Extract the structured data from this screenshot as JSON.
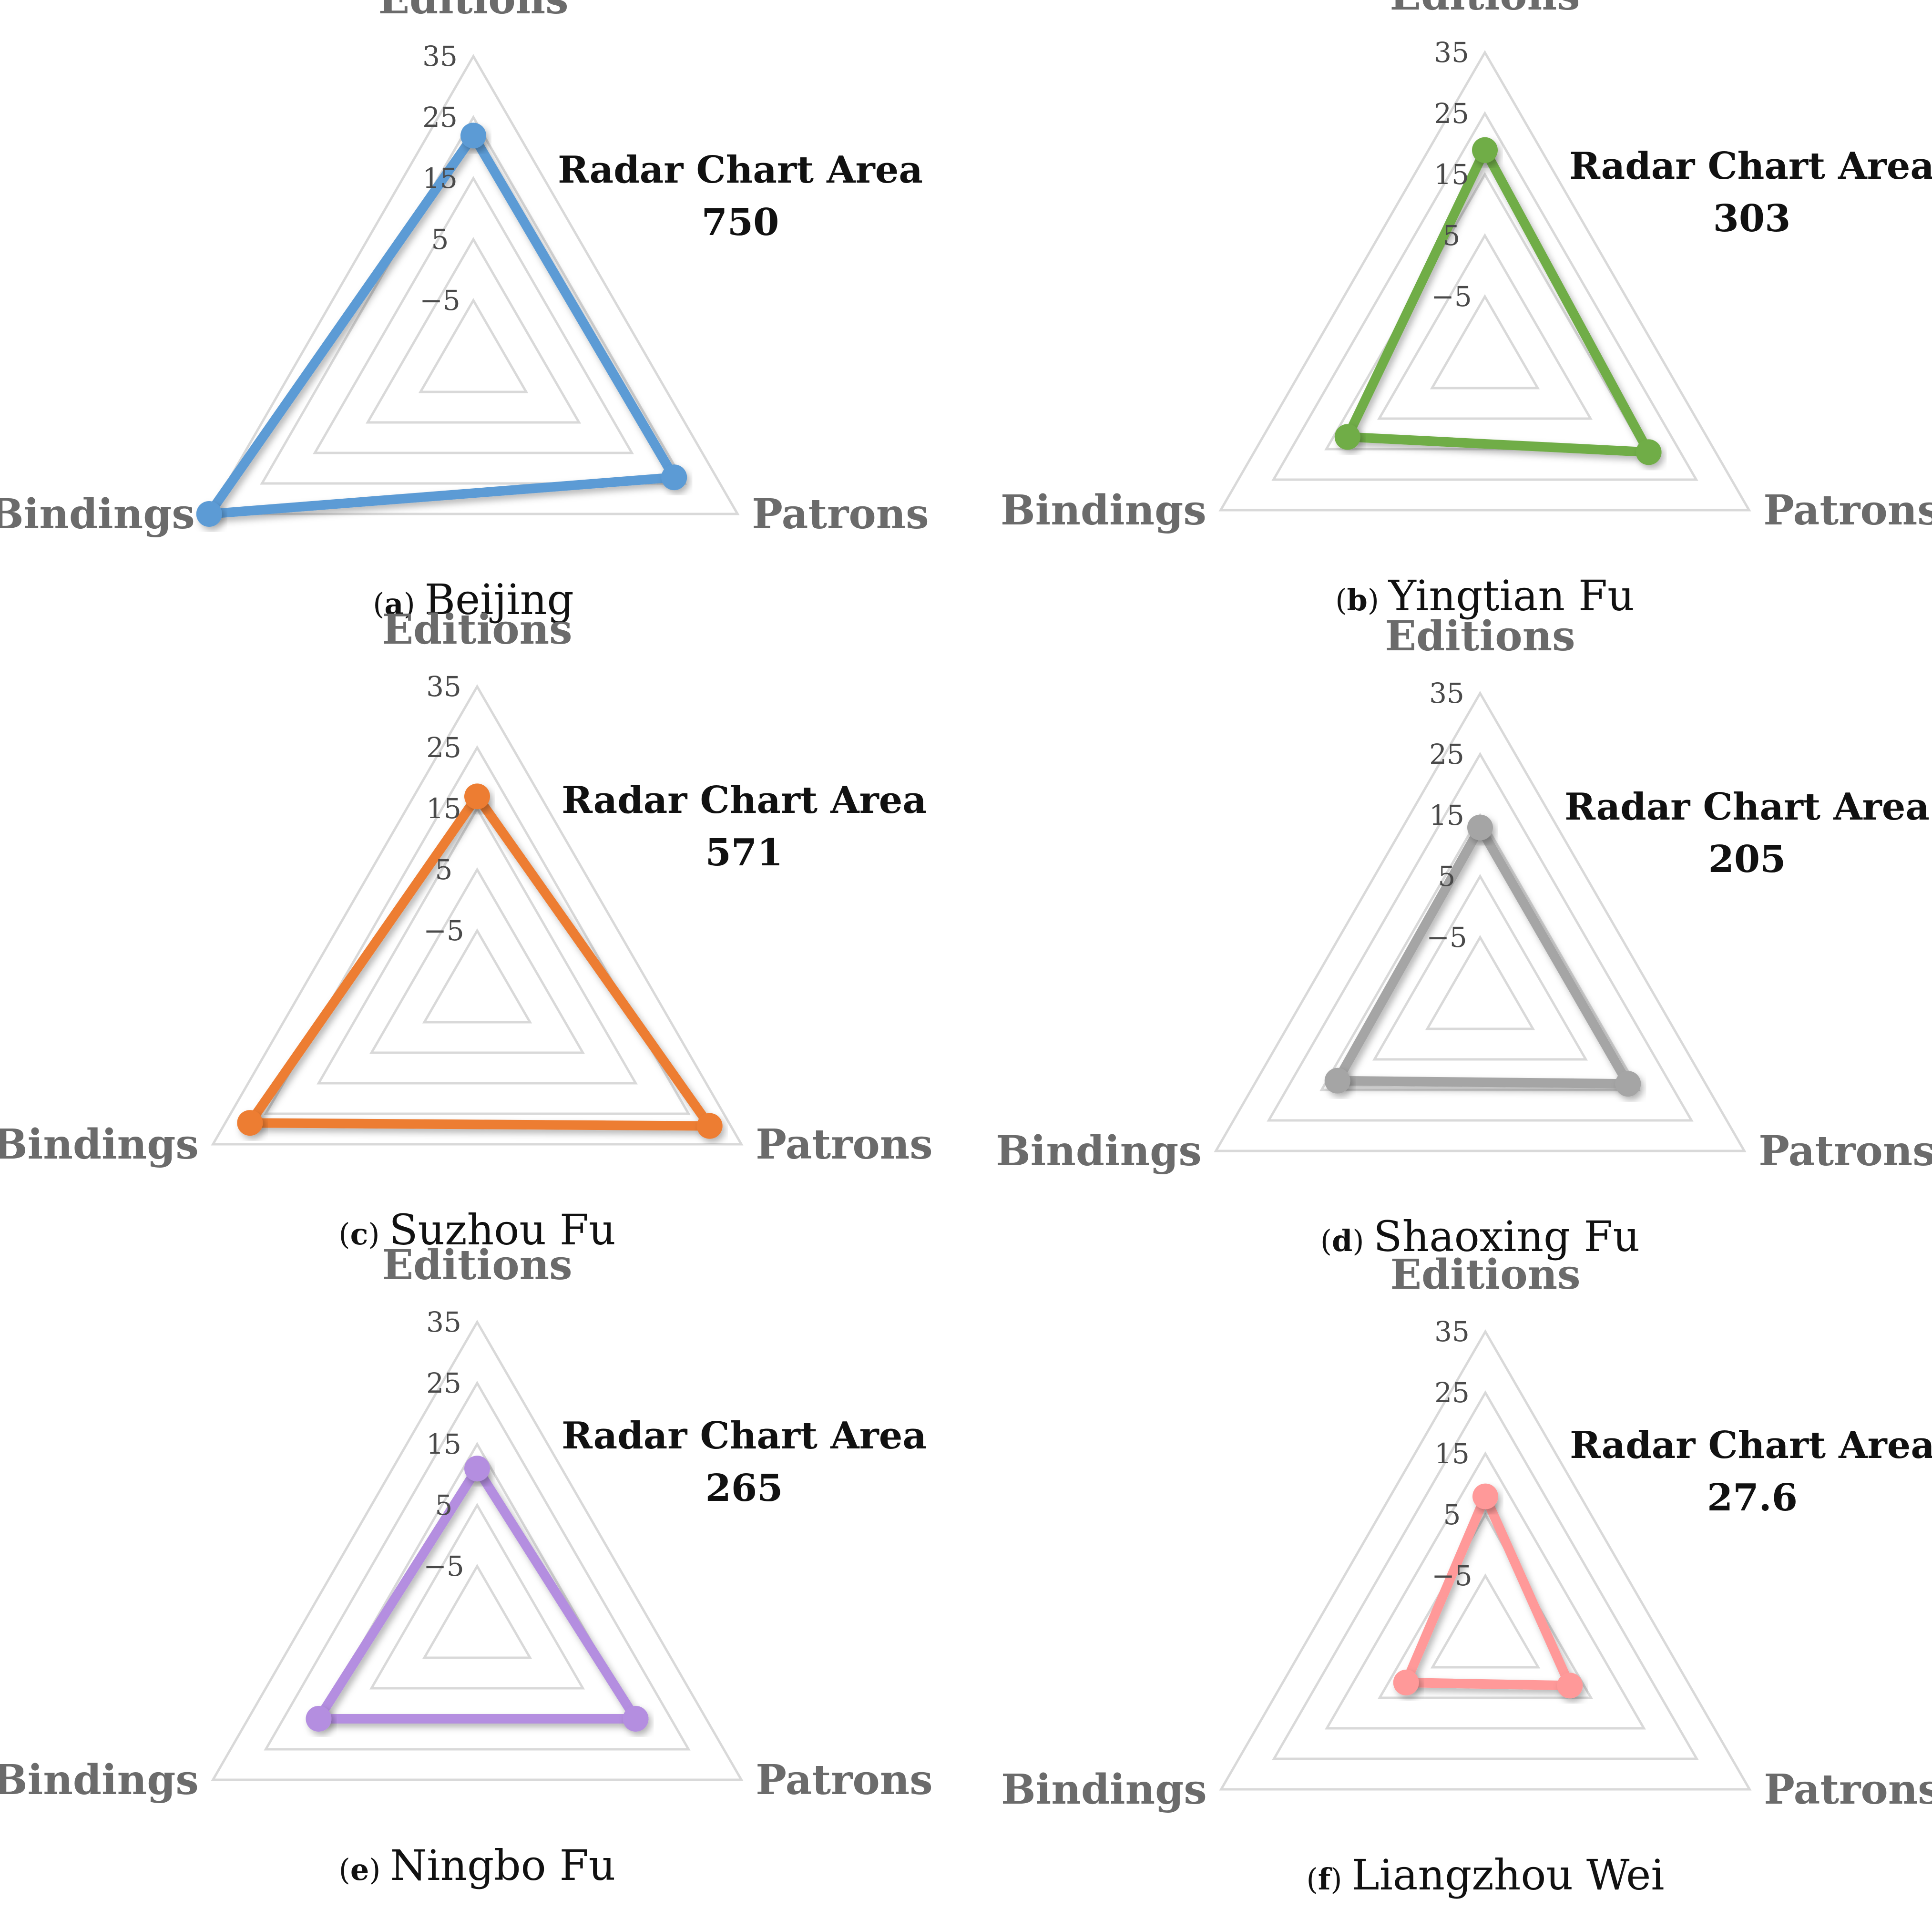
{
  "chart_data": [
    {
      "type": "radar",
      "panel": "a",
      "caption": "Beijing",
      "axes": [
        "Editions",
        "Patrons",
        "Bindings"
      ],
      "ticks": [
        "35",
        "25",
        "15",
        "5",
        "−5"
      ],
      "range": [
        -15,
        35
      ],
      "values": [
        22,
        23,
        35
      ],
      "color": "#5b9bd5",
      "annotation": {
        "title": "Radar Chart Area",
        "value": "750"
      }
    },
    {
      "type": "radar",
      "panel": "b",
      "caption": "Yingtian Fu",
      "axes": [
        "Editions",
        "Patrons",
        "Bindings"
      ],
      "ticks": [
        "35",
        "25",
        "15",
        "5",
        "−5"
      ],
      "range": [
        -15,
        35
      ],
      "values": [
        19,
        16,
        11
      ],
      "color": "#70ad47",
      "annotation": {
        "title": "Radar Chart Area",
        "value": "303"
      }
    },
    {
      "type": "radar",
      "panel": "c",
      "caption": "Suzhou Fu",
      "axes": [
        "Editions",
        "Patrons",
        "Bindings"
      ],
      "ticks": [
        "35",
        "25",
        "15",
        "5",
        "−5"
      ],
      "range": [
        -15,
        35
      ],
      "values": [
        17,
        29,
        28
      ],
      "color": "#ed7d31",
      "annotation": {
        "title": "Radar Chart Area",
        "value": "571"
      }
    },
    {
      "type": "radar",
      "panel": "d",
      "caption": "Shaoxing Fu",
      "axes": [
        "Editions",
        "Patrons",
        "Bindings"
      ],
      "ticks": [
        "35",
        "25",
        "15",
        "5",
        "−5"
      ],
      "range": [
        -15,
        35
      ],
      "values": [
        13,
        13,
        12
      ],
      "color": "#a5a5a5",
      "annotation": {
        "title": "Radar Chart Area",
        "value": "205"
      }
    },
    {
      "type": "radar",
      "panel": "e",
      "caption": "Ningbo Fu",
      "axes": [
        "Editions",
        "Patrons",
        "Bindings"
      ],
      "ticks": [
        "35",
        "25",
        "15",
        "5",
        "−5"
      ],
      "range": [
        -15,
        35
      ],
      "values": [
        11,
        15,
        15
      ],
      "color": "#b48ee0",
      "annotation": {
        "title": "Radar Chart Area",
        "value": "265"
      }
    },
    {
      "type": "radar",
      "panel": "f",
      "caption": "Liangzhou Wei",
      "axes": [
        "Editions",
        "Patrons",
        "Bindings"
      ],
      "ticks": [
        "35",
        "25",
        "15",
        "5",
        "−5"
      ],
      "range": [
        -15,
        35
      ],
      "values": [
        8,
        1,
        0
      ],
      "color": "#ff9999",
      "annotation": {
        "title": "Radar Chart Area",
        "value": "27.6"
      }
    }
  ]
}
